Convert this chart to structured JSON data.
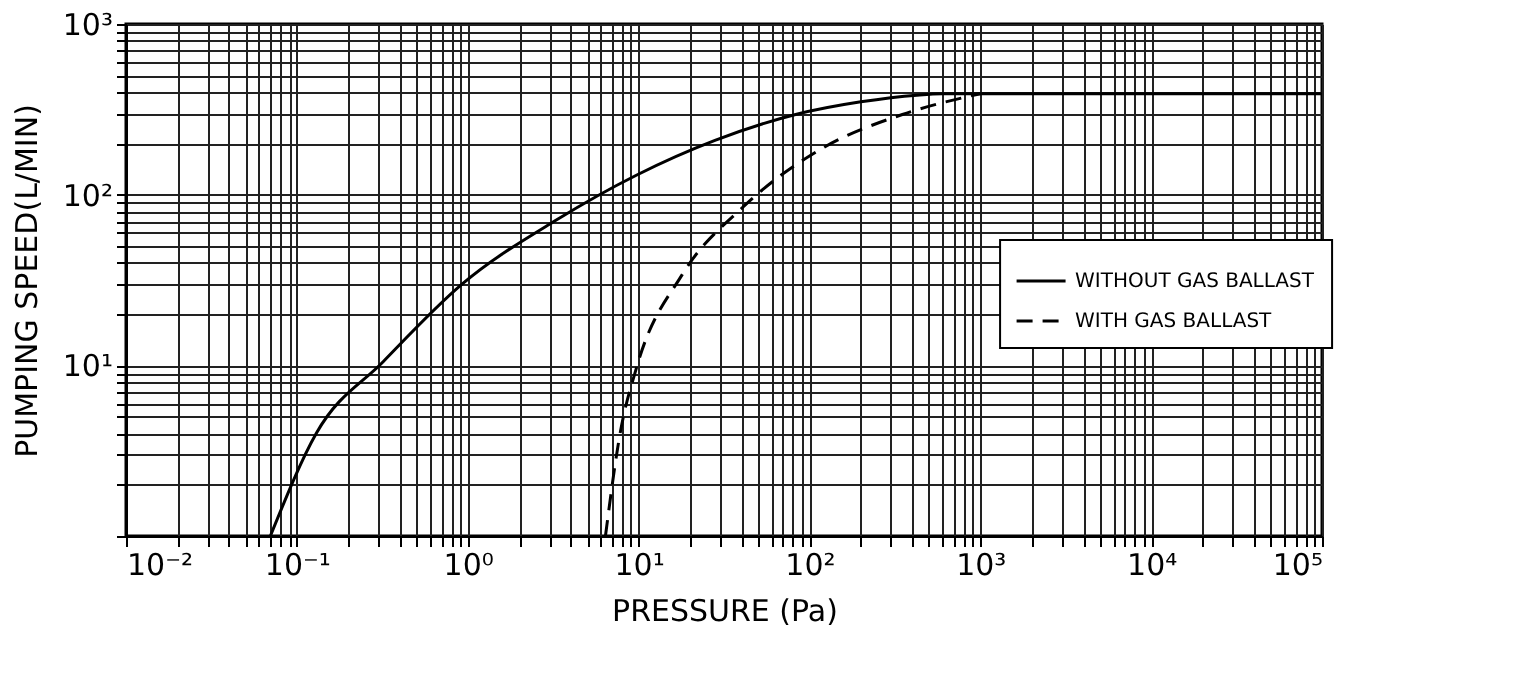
{
  "chart_data": {
    "type": "line",
    "xlabel": "PRESSURE (Pa)",
    "ylabel": "PUMPING SPEED(L/MIN)",
    "log": "xy",
    "grid": true,
    "legend": "right",
    "marker": "none",
    "xlim": [
      0.01,
      100000
    ],
    "ylim": [
      1,
      1000
    ],
    "xticks": [
      {
        "value": 0.01,
        "label": "10⁻²"
      },
      {
        "value": 0.02,
        "label": null
      },
      {
        "value": 0.03,
        "label": null
      },
      {
        "value": 0.04,
        "label": null
      },
      {
        "value": 0.05,
        "label": null
      },
      {
        "value": 0.06,
        "label": null
      },
      {
        "value": 0.07,
        "label": null
      },
      {
        "value": 0.08,
        "label": null
      },
      {
        "value": 0.09,
        "label": null
      },
      {
        "value": 0.1,
        "label": "10⁻¹"
      },
      {
        "value": 0.2,
        "label": null
      },
      {
        "value": 0.3,
        "label": null
      },
      {
        "value": 0.4,
        "label": null
      },
      {
        "value": 0.5,
        "label": null
      },
      {
        "value": 0.6,
        "label": null
      },
      {
        "value": 0.7,
        "label": null
      },
      {
        "value": 0.8,
        "label": null
      },
      {
        "value": 0.9,
        "label": null
      },
      {
        "value": 1,
        "label": "10⁰"
      },
      {
        "value": 2,
        "label": null
      },
      {
        "value": 3,
        "label": null
      },
      {
        "value": 4,
        "label": null
      },
      {
        "value": 5,
        "label": null
      },
      {
        "value": 6,
        "label": null
      },
      {
        "value": 7,
        "label": null
      },
      {
        "value": 8,
        "label": null
      },
      {
        "value": 9,
        "label": null
      },
      {
        "value": 10,
        "label": "10¹"
      },
      {
        "value": 20,
        "label": null
      },
      {
        "value": 30,
        "label": null
      },
      {
        "value": 40,
        "label": null
      },
      {
        "value": 50,
        "label": null
      },
      {
        "value": 60,
        "label": null
      },
      {
        "value": 70,
        "label": null
      },
      {
        "value": 80,
        "label": null
      },
      {
        "value": 90,
        "label": null
      },
      {
        "value": 100,
        "label": "10²"
      },
      {
        "value": 200,
        "label": null
      },
      {
        "value": 300,
        "label": null
      },
      {
        "value": 400,
        "label": null
      },
      {
        "value": 500,
        "label": null
      },
      {
        "value": 600,
        "label": null
      },
      {
        "value": 700,
        "label": null
      },
      {
        "value": 800,
        "label": null
      },
      {
        "value": 900,
        "label": null
      },
      {
        "value": 1000,
        "label": "10³"
      },
      {
        "value": 2000,
        "label": null
      },
      {
        "value": 3000,
        "label": null
      },
      {
        "value": 4000,
        "label": null
      },
      {
        "value": 5000,
        "label": null
      },
      {
        "value": 6000,
        "label": null
      },
      {
        "value": 7000,
        "label": null
      },
      {
        "value": 8000,
        "label": null
      },
      {
        "value": 9000,
        "label": null
      },
      {
        "value": 10000,
        "label": "10⁴"
      },
      {
        "value": 20000,
        "label": null
      },
      {
        "value": 30000,
        "label": null
      },
      {
        "value": 40000,
        "label": null
      },
      {
        "value": 50000,
        "label": null
      },
      {
        "value": 60000,
        "label": null
      },
      {
        "value": 70000,
        "label": null
      },
      {
        "value": 80000,
        "label": null
      },
      {
        "value": 90000,
        "label": null
      },
      {
        "value": 100000,
        "label": "10⁵"
      }
    ],
    "yticks": [
      {
        "value": 1,
        "label": null
      },
      {
        "value": 2,
        "label": null
      },
      {
        "value": 3,
        "label": null
      },
      {
        "value": 4,
        "label": null
      },
      {
        "value": 5,
        "label": null
      },
      {
        "value": 6,
        "label": null
      },
      {
        "value": 7,
        "label": null
      },
      {
        "value": 8,
        "label": null
      },
      {
        "value": 9,
        "label": null
      },
      {
        "value": 10,
        "label": "10¹"
      },
      {
        "value": 20,
        "label": null
      },
      {
        "value": 30,
        "label": null
      },
      {
        "value": 40,
        "label": null
      },
      {
        "value": 50,
        "label": null
      },
      {
        "value": 60,
        "label": null
      },
      {
        "value": 70,
        "label": null
      },
      {
        "value": 80,
        "label": null
      },
      {
        "value": 90,
        "label": null
      },
      {
        "value": 100,
        "label": "10²"
      },
      {
        "value": 200,
        "label": null
      },
      {
        "value": 300,
        "label": null
      },
      {
        "value": 400,
        "label": null
      },
      {
        "value": 500,
        "label": null
      },
      {
        "value": 600,
        "label": null
      },
      {
        "value": 700,
        "label": null
      },
      {
        "value": 800,
        "label": null
      },
      {
        "value": 900,
        "label": null
      },
      {
        "value": 1000,
        "label": "10³"
      }
    ],
    "series": [
      {
        "name": "WITHOUT GAS BALLAST",
        "color": "#000000",
        "line_style": "solid",
        "x": [
          0.07,
          0.13,
          0.32,
          0.93,
          3.3,
          9.7,
          28,
          83,
          200,
          425,
          600,
          1000,
          10000,
          100000
        ],
        "values": [
          1,
          4,
          10.5,
          30,
          71,
          130,
          208,
          295,
          350,
          383,
          390,
          390,
          390,
          390
        ]
      },
      {
        "name": "WITH  GAS  BALLAST",
        "color": "#000000",
        "line_style": "dashed",
        "x": [
          6.4,
          7.8,
          9.7,
          18,
          40,
          118,
          350,
          1000
        ],
        "values": [
          1,
          4,
          9.6,
          34,
          83,
          186,
          295,
          390
        ]
      }
    ]
  }
}
